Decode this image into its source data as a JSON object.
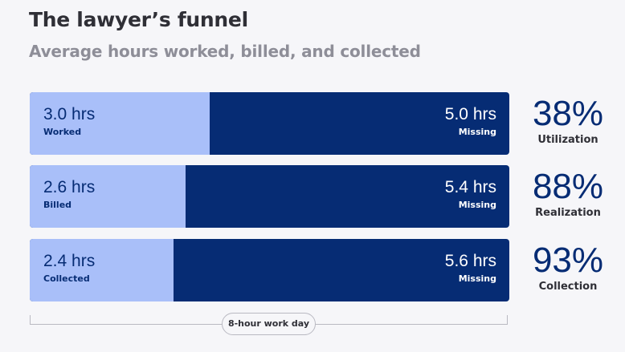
{
  "chart_data": {
    "type": "bar",
    "title": "The lawyer’s funnel",
    "subtitle": "Average hours worked, billed, and collected",
    "total_hours": 8,
    "rows": [
      {
        "value": 3.0,
        "value_label": "3.0 hrs",
        "label": "Worked",
        "remainder": 5.0,
        "remainder_label": "5.0 hrs",
        "remainder_name": "Missing",
        "percent_label": "38%",
        "metric": "Utilization"
      },
      {
        "value": 2.6,
        "value_label": "2.6 hrs",
        "label": "Billed",
        "remainder": 5.4,
        "remainder_label": "5.4 hrs",
        "remainder_name": "Missing",
        "percent_label": "88%",
        "metric": "Realization"
      },
      {
        "value": 2.4,
        "value_label": "2.4 hrs",
        "label": "Collected",
        "remainder": 5.6,
        "remainder_label": "5.6 hrs",
        "remainder_name": "Missing",
        "percent_label": "93%",
        "metric": "Collection"
      }
    ],
    "bracket_label": "8-hour work day",
    "colors": {
      "filled": "#a9bff9",
      "missing": "#062c74",
      "percent": "#062c74"
    }
  }
}
